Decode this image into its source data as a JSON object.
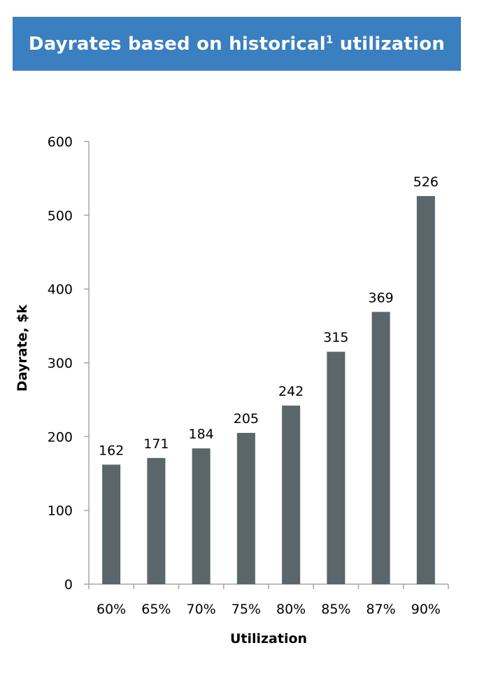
{
  "title": {
    "before": "Dayrates based on historical",
    "sup": "1",
    "after": " utilization"
  },
  "chart_data": {
    "type": "bar",
    "categories": [
      "60%",
      "65%",
      "70%",
      "75%",
      "80%",
      "85%",
      "87%",
      "90%"
    ],
    "values": [
      162,
      171,
      184,
      205,
      242,
      315,
      369,
      526
    ],
    "data_labels": [
      "162",
      "171",
      "184",
      "205",
      "242",
      "315",
      "369",
      "526"
    ],
    "xlabel": "Utilization",
    "ylabel": "Dayrate, $k",
    "ylim": [
      0,
      600
    ],
    "yticks": [
      0,
      100,
      200,
      300,
      400,
      500,
      600
    ],
    "ytick_labels": [
      "0",
      "100",
      "200",
      "300",
      "400",
      "500",
      "600"
    ],
    "grid": false,
    "bar_color": "#5a6669",
    "axis_color": "#a6a6a6"
  },
  "colors": {
    "banner": "#3a7fbf",
    "banner_text": "#ffffff"
  }
}
